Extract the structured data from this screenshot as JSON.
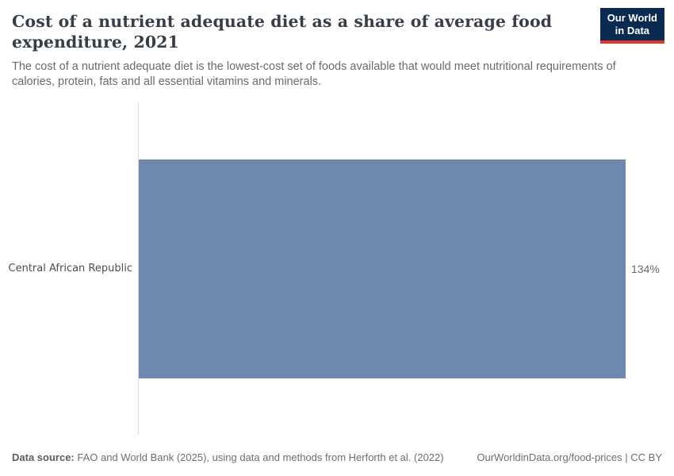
{
  "header": {
    "title_line1": "Cost of a nutrient adequate diet as a share of average food",
    "title_line2": "expenditure, 2021",
    "subtitle": "The cost of a nutrient adequate diet is the lowest-cost set of foods available that would meet nutritional requirements of calories, protein, fats and all essential vitamins and minerals.",
    "logo": {
      "line1": "Our World",
      "line2": "in Data"
    }
  },
  "chart_data": {
    "type": "bar",
    "orientation": "horizontal",
    "title": "Cost of a nutrient adequate diet as a share of average food expenditure, 2021",
    "categories": [
      "Central African Republic"
    ],
    "values": [
      134
    ],
    "value_labels": [
      "134%"
    ],
    "unit": "%",
    "xlim": [
      0,
      134
    ],
    "grid": false,
    "legend": false,
    "bar_color": "#6e88ae",
    "axis_color": "#dcdcdc"
  },
  "footer": {
    "source_label": "Data source:",
    "source_text": " FAO and World Bank (2025), using data and methods from Herforth et al. (2022)",
    "right_text": "OurWorldinData.org/food-prices | CC BY"
  }
}
